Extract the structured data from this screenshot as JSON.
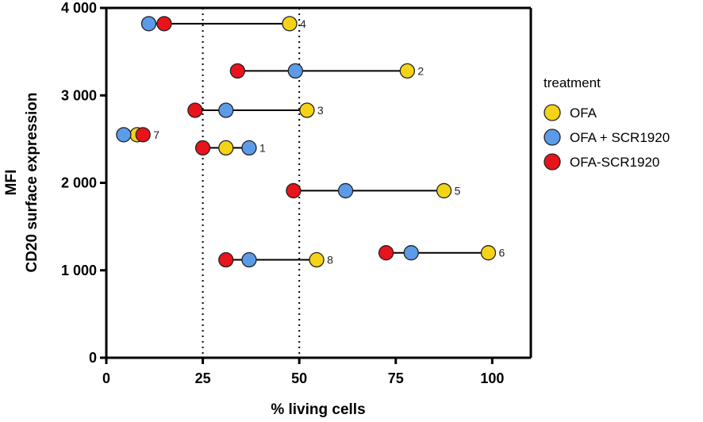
{
  "chart_data": {
    "type": "scatter",
    "subtype": "dumbbell",
    "xlabel": "% living cells",
    "ylabel_line1": "MFI",
    "ylabel_line2": "CD20 surface expression",
    "xlim": [
      0,
      110
    ],
    "ylim": [
      0,
      4000
    ],
    "x_ticks": [
      0,
      25,
      50,
      75,
      100
    ],
    "x_tick_labels": [
      "0",
      "25",
      "50",
      "75",
      "100"
    ],
    "y_ticks": [
      0,
      1000,
      2000,
      3000,
      4000
    ],
    "y_tick_labels": [
      "0",
      "1 000",
      "2 000",
      "3 000",
      "4 000"
    ],
    "reference_lines_x": [
      25,
      50
    ],
    "legend": {
      "title": "treatment",
      "position": "right",
      "entries": [
        {
          "name": "OFA",
          "color": "#f5d418"
        },
        {
          "name": "OFA + SCR1920",
          "color": "#5b9be8"
        },
        {
          "name": "OFA-SCR1920",
          "color": "#e8131b"
        }
      ]
    },
    "samples": [
      {
        "label": "4",
        "y": 3820,
        "ofa": 47.5,
        "ofa_scr": 11.0,
        "ofa_conj": 15.0
      },
      {
        "label": "2",
        "y": 3280,
        "ofa": 78.0,
        "ofa_scr": 49.0,
        "ofa_conj": 34.0
      },
      {
        "label": "3",
        "y": 2830,
        "ofa": 52.0,
        "ofa_scr": 31.0,
        "ofa_conj": 23.0
      },
      {
        "label": "7",
        "y": 2550,
        "ofa": 8.0,
        "ofa_scr": 4.5,
        "ofa_conj": 9.5
      },
      {
        "label": "1",
        "y": 2400,
        "ofa": 31.0,
        "ofa_scr": 37.0,
        "ofa_conj": 25.0
      },
      {
        "label": "5",
        "y": 1910,
        "ofa": 87.5,
        "ofa_scr": 62.0,
        "ofa_conj": 48.5
      },
      {
        "label": "6",
        "y": 1200,
        "ofa": 99.0,
        "ofa_scr": 79.0,
        "ofa_conj": 72.5
      },
      {
        "label": "8",
        "y": 1120,
        "ofa": 54.5,
        "ofa_scr": 37.0,
        "ofa_conj": 31.0
      }
    ]
  }
}
